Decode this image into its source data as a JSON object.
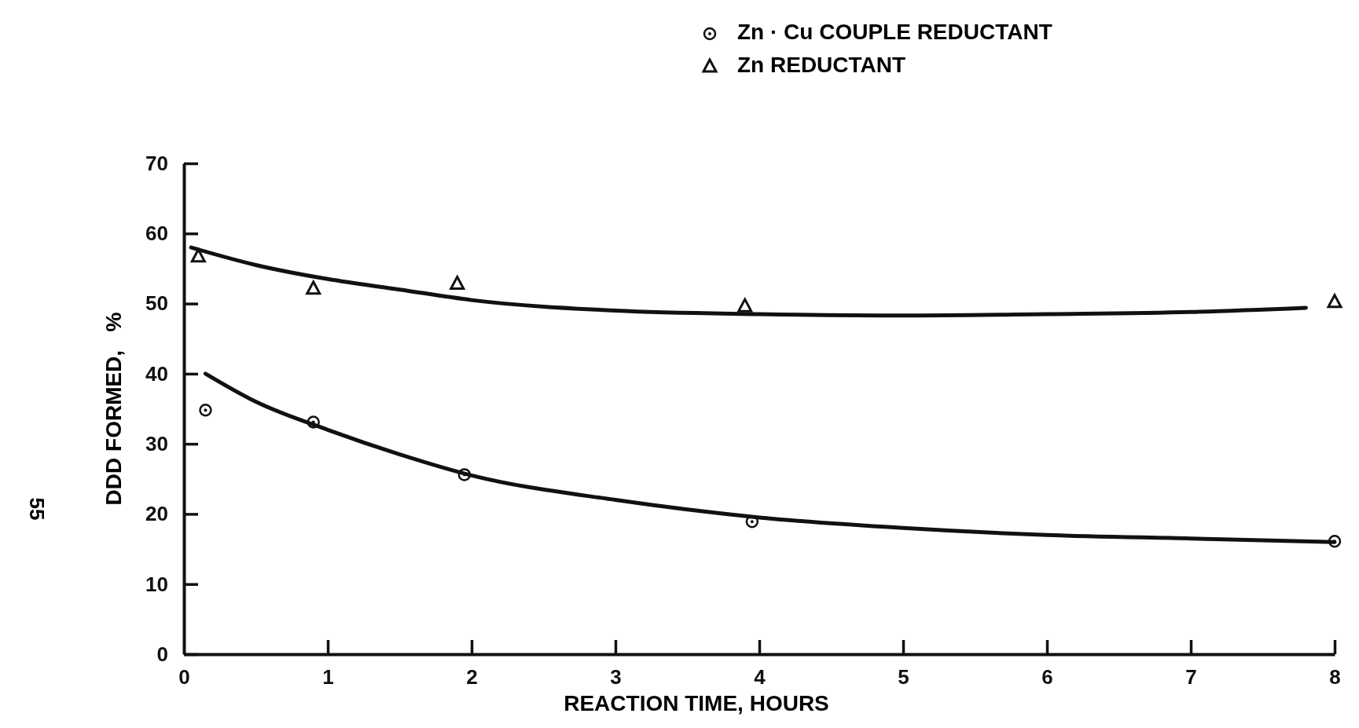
{
  "chart_data": {
    "type": "scatter",
    "xlabel": "REACTION TIME,   HOURS",
    "ylabel": "DDD FORMED,   %",
    "xlim": [
      0,
      8
    ],
    "ylim": [
      0,
      70
    ],
    "xticks": [
      0,
      1,
      2,
      3,
      4,
      5,
      6,
      7,
      8
    ],
    "yticks": [
      0,
      10,
      20,
      30,
      40,
      50,
      60,
      70
    ],
    "grid": false,
    "legend": "top",
    "annotations": [
      "55"
    ],
    "series": [
      {
        "name": "Zn · Cu COUPLE REDUCTANT",
        "marker": "circle",
        "color": "#111111",
        "x": [
          0.15,
          0.9,
          1.95,
          3.95,
          8
        ],
        "values": [
          34.8,
          33.1,
          25.6,
          18.9,
          16.1
        ]
      },
      {
        "name": "Zn REDUCTANT",
        "marker": "triangle",
        "color": "#111111",
        "x": [
          0.1,
          0.9,
          1.9,
          3.9,
          8
        ],
        "values": [
          56.7,
          52.1,
          52.8,
          49.6,
          50.2
        ]
      },
      {
        "type": "line",
        "marker": "none",
        "color": "#111111",
        "x": [
          0.15,
          0.5,
          1,
          1.5,
          2,
          3,
          4,
          5,
          6,
          7,
          8
        ],
        "values": [
          40,
          36,
          32,
          28.5,
          25.5,
          22,
          19.5,
          18,
          17,
          16.5,
          16
        ]
      },
      {
        "type": "line",
        "marker": "none",
        "color": "#111111",
        "x": [
          0.05,
          0.5,
          1,
          1.5,
          2,
          3,
          4,
          5,
          6,
          7,
          7.8
        ],
        "values": [
          58,
          55.5,
          53.5,
          52,
          50.5,
          49,
          48.5,
          48.3,
          48.5,
          48.8,
          49.4
        ]
      }
    ]
  }
}
